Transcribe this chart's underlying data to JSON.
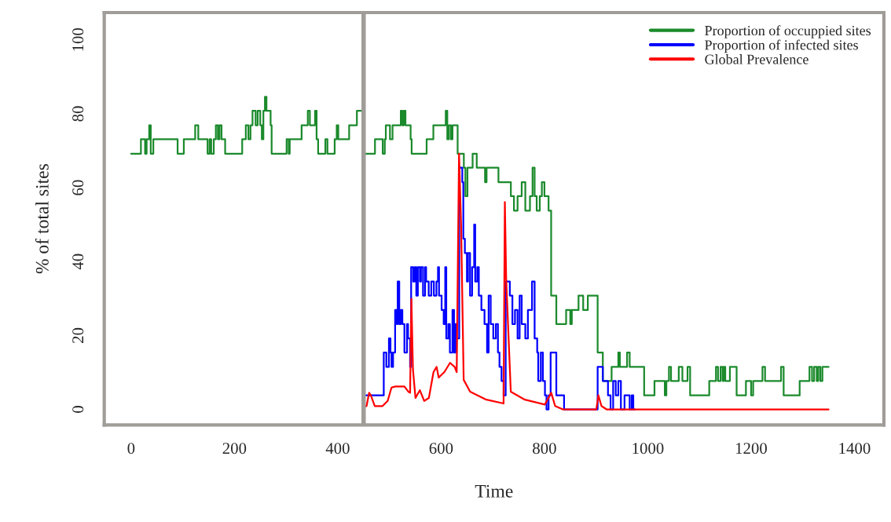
{
  "chart_data": {
    "type": "line",
    "xlabel": "Time",
    "ylabel": "% of total sites",
    "xlim": [
      -52,
      1457
    ],
    "ylim": [
      -4.2,
      107.4
    ],
    "xticks": [
      0,
      200,
      400,
      600,
      800,
      1000,
      1200,
      1400
    ],
    "yticks": [
      0,
      20,
      40,
      60,
      80,
      100
    ],
    "grid": false,
    "legend": "top right",
    "ref_lines": [
      {
        "axis": "x",
        "value": 450,
        "color": "#a09c98"
      }
    ],
    "series": [
      {
        "name": "Proportion of occuppied sites",
        "color": "#1b8a2c",
        "type": "step",
        "x": [
          0,
          19,
          27,
          30,
          35,
          38,
          43,
          90,
          102,
          124,
          130,
          148,
          152,
          155,
          160,
          164,
          168,
          171,
          175,
          182,
          215,
          222,
          227,
          231,
          235,
          241,
          245,
          250,
          253,
          256,
          259,
          262,
          270,
          272,
          301,
          305,
          307,
          330,
          342,
          346,
          356,
          359,
          362,
          376,
          380,
          394,
          398,
          401,
          422,
          437,
          450
        ],
        "values": [
          69.2,
          73.1,
          69.2,
          73.1,
          76.9,
          69.2,
          73.1,
          69.2,
          73.1,
          76.9,
          73.1,
          69.2,
          73.1,
          69.2,
          73.1,
          76.9,
          73.1,
          76.9,
          73.1,
          69.2,
          73.1,
          76.9,
          73.1,
          76.9,
          80.8,
          76.9,
          80.8,
          76.9,
          73.1,
          80.8,
          84.6,
          80.8,
          76.9,
          69.2,
          73.1,
          69.2,
          73.1,
          76.9,
          80.8,
          76.9,
          80.8,
          73.1,
          69.2,
          73.1,
          69.2,
          73.1,
          76.9,
          73.1,
          76.9,
          80.8,
          80.8
        ]
      },
      {
        "color": "#1b8a2c",
        "type": "step",
        "x": [
          452,
          472,
          487,
          491,
          493,
          501,
          506,
          522,
          525,
          528,
          531,
          541,
          543,
          572,
          585,
          609,
          612,
          615,
          619,
          622,
          632,
          644,
          647,
          651,
          661,
          669,
          685,
          688,
          711,
          735,
          741,
          748,
          756,
          763,
          772,
          777,
          781,
          785,
          791,
          795,
          800,
          808,
          813,
          823,
          842,
          850,
          853,
          866,
          875,
          884,
          903,
          913,
          930,
          943,
          946,
          960,
          965,
          993,
          1013,
          1033,
          1036,
          1041,
          1045,
          1060,
          1067,
          1077,
          1082,
          1119,
          1132,
          1136,
          1141,
          1145,
          1147,
          1150,
          1159,
          1172,
          1190,
          1200,
          1204,
          1222,
          1227,
          1258,
          1263,
          1294,
          1313,
          1318,
          1322,
          1327,
          1330,
          1334,
          1338,
          1350
        ],
        "values": [
          69.2,
          73.1,
          69.2,
          73.1,
          76.9,
          73.1,
          76.9,
          80.8,
          76.9,
          80.8,
          76.9,
          73.1,
          69.2,
          73.1,
          76.9,
          80.8,
          73.1,
          76.9,
          73.1,
          76.9,
          69.2,
          65.4,
          57.7,
          65.4,
          69.2,
          65.4,
          61.5,
          65.4,
          61.5,
          57.7,
          53.8,
          57.7,
          61.5,
          53.8,
          57.7,
          65.4,
          57.7,
          53.8,
          57.7,
          61.5,
          57.7,
          53.8,
          30.8,
          23.1,
          26.9,
          23.1,
          26.9,
          30.8,
          26.9,
          30.8,
          15.4,
          7.7,
          11.5,
          15.4,
          11.5,
          15.4,
          11.5,
          3.8,
          7.7,
          3.8,
          7.7,
          11.5,
          7.7,
          11.5,
          7.7,
          11.5,
          3.8,
          7.7,
          11.5,
          7.7,
          11.5,
          7.7,
          11.5,
          7.7,
          11.5,
          3.8,
          7.7,
          3.8,
          7.7,
          11.5,
          7.7,
          11.5,
          3.8,
          7.7,
          11.5,
          7.7,
          11.5,
          7.7,
          11.5,
          7.7,
          11.5,
          11.5
        ]
      },
      {
        "name": "Proportion of infected sites",
        "color": "#0000ff",
        "type": "step",
        "x": [
          452,
          489,
          494,
          499,
          502,
          504,
          507,
          511,
          514,
          516,
          519,
          522,
          525,
          529,
          534,
          536,
          540,
          542,
          546,
          549,
          552,
          555,
          559,
          561,
          565,
          569,
          571,
          576,
          581,
          586,
          591,
          594,
          596,
          601,
          605,
          608,
          610,
          614,
          617,
          622,
          625,
          628,
          630,
          635,
          641,
          643,
          646,
          650,
          652,
          656,
          660,
          664,
          666,
          670,
          673,
          678,
          684,
          689,
          692,
          696,
          701,
          706,
          710,
          713,
          717,
          721,
          725,
          733,
          738,
          743,
          748,
          752,
          756,
          763,
          768,
          776,
          781,
          786,
          788,
          793,
          797,
          801,
          804,
          808,
          812,
          823,
          838,
          903,
          913,
          923,
          928,
          933,
          938,
          943,
          948,
          955,
          965,
          969,
          972,
          975
        ],
        "values": [
          3.8,
          15.4,
          11.5,
          19.2,
          15.4,
          11.5,
          15.4,
          26.9,
          23.1,
          34.6,
          23.1,
          26.9,
          23.1,
          15.4,
          23.1,
          19.2,
          11.5,
          38.5,
          34.6,
          38.5,
          30.8,
          38.5,
          34.6,
          38.5,
          30.8,
          38.5,
          34.6,
          30.8,
          34.6,
          30.8,
          34.6,
          38.5,
          30.8,
          26.9,
          23.1,
          38.5,
          19.2,
          23.1,
          15.4,
          26.9,
          15.4,
          23.1,
          19.2,
          65.4,
          61.5,
          46.2,
          42.3,
          34.6,
          42.3,
          30.8,
          38.5,
          50,
          34.6,
          38.5,
          30.8,
          26.9,
          23.1,
          15.4,
          30.8,
          23.1,
          19.2,
          23.1,
          15.4,
          11.5,
          7.7,
          3.8,
          34.6,
          30.8,
          23.1,
          26.9,
          19.2,
          30.8,
          23.1,
          19.2,
          26.9,
          34.6,
          19.2,
          15.4,
          7.7,
          15.4,
          7.7,
          3.8,
          0,
          3.8,
          15.4,
          3.8,
          0,
          11.5,
          7.7,
          3.8,
          0,
          7.7,
          3.8,
          7.7,
          0,
          3.8,
          0,
          3.8,
          0,
          0
        ]
      },
      {
        "name": "Global Prevalence",
        "color": "#ff0000",
        "x": [
          450,
          455.7,
          460.7,
          464,
          471.6,
          486.6,
          496.6,
          504,
          511.5,
          529,
          536.5,
          540,
          542.5,
          545.5,
          550.4,
          558.9,
          567.3,
          576.3,
          585.3,
          591.3,
          595.3,
          606.3,
          617.3,
          626.2,
          630.2,
          634.7,
          638.7,
          643.7,
          656.2,
          686.1,
          720.9,
          723.4,
          725.9,
          734.9,
          760.8,
          800.7,
          813.2,
          820.7,
          835.6,
          900.4,
          904.4,
          910.4,
          920.3,
          1350
        ],
        "values": [
          0.9,
          0.9,
          4.5,
          3.8,
          0.9,
          0.9,
          2.3,
          5.9,
          6.2,
          6.2,
          4.8,
          4.5,
          29.9,
          10.8,
          3.1,
          5.2,
          2.3,
          3.1,
          10.1,
          11.5,
          8.6,
          10.1,
          12.6,
          11.5,
          10.1,
          69.2,
          49.7,
          8,
          4.8,
          2.7,
          1.6,
          56.1,
          35.6,
          4.8,
          2.7,
          1.3,
          4.5,
          0.9,
          0,
          0,
          3.8,
          0.9,
          0,
          0
        ]
      }
    ]
  }
}
